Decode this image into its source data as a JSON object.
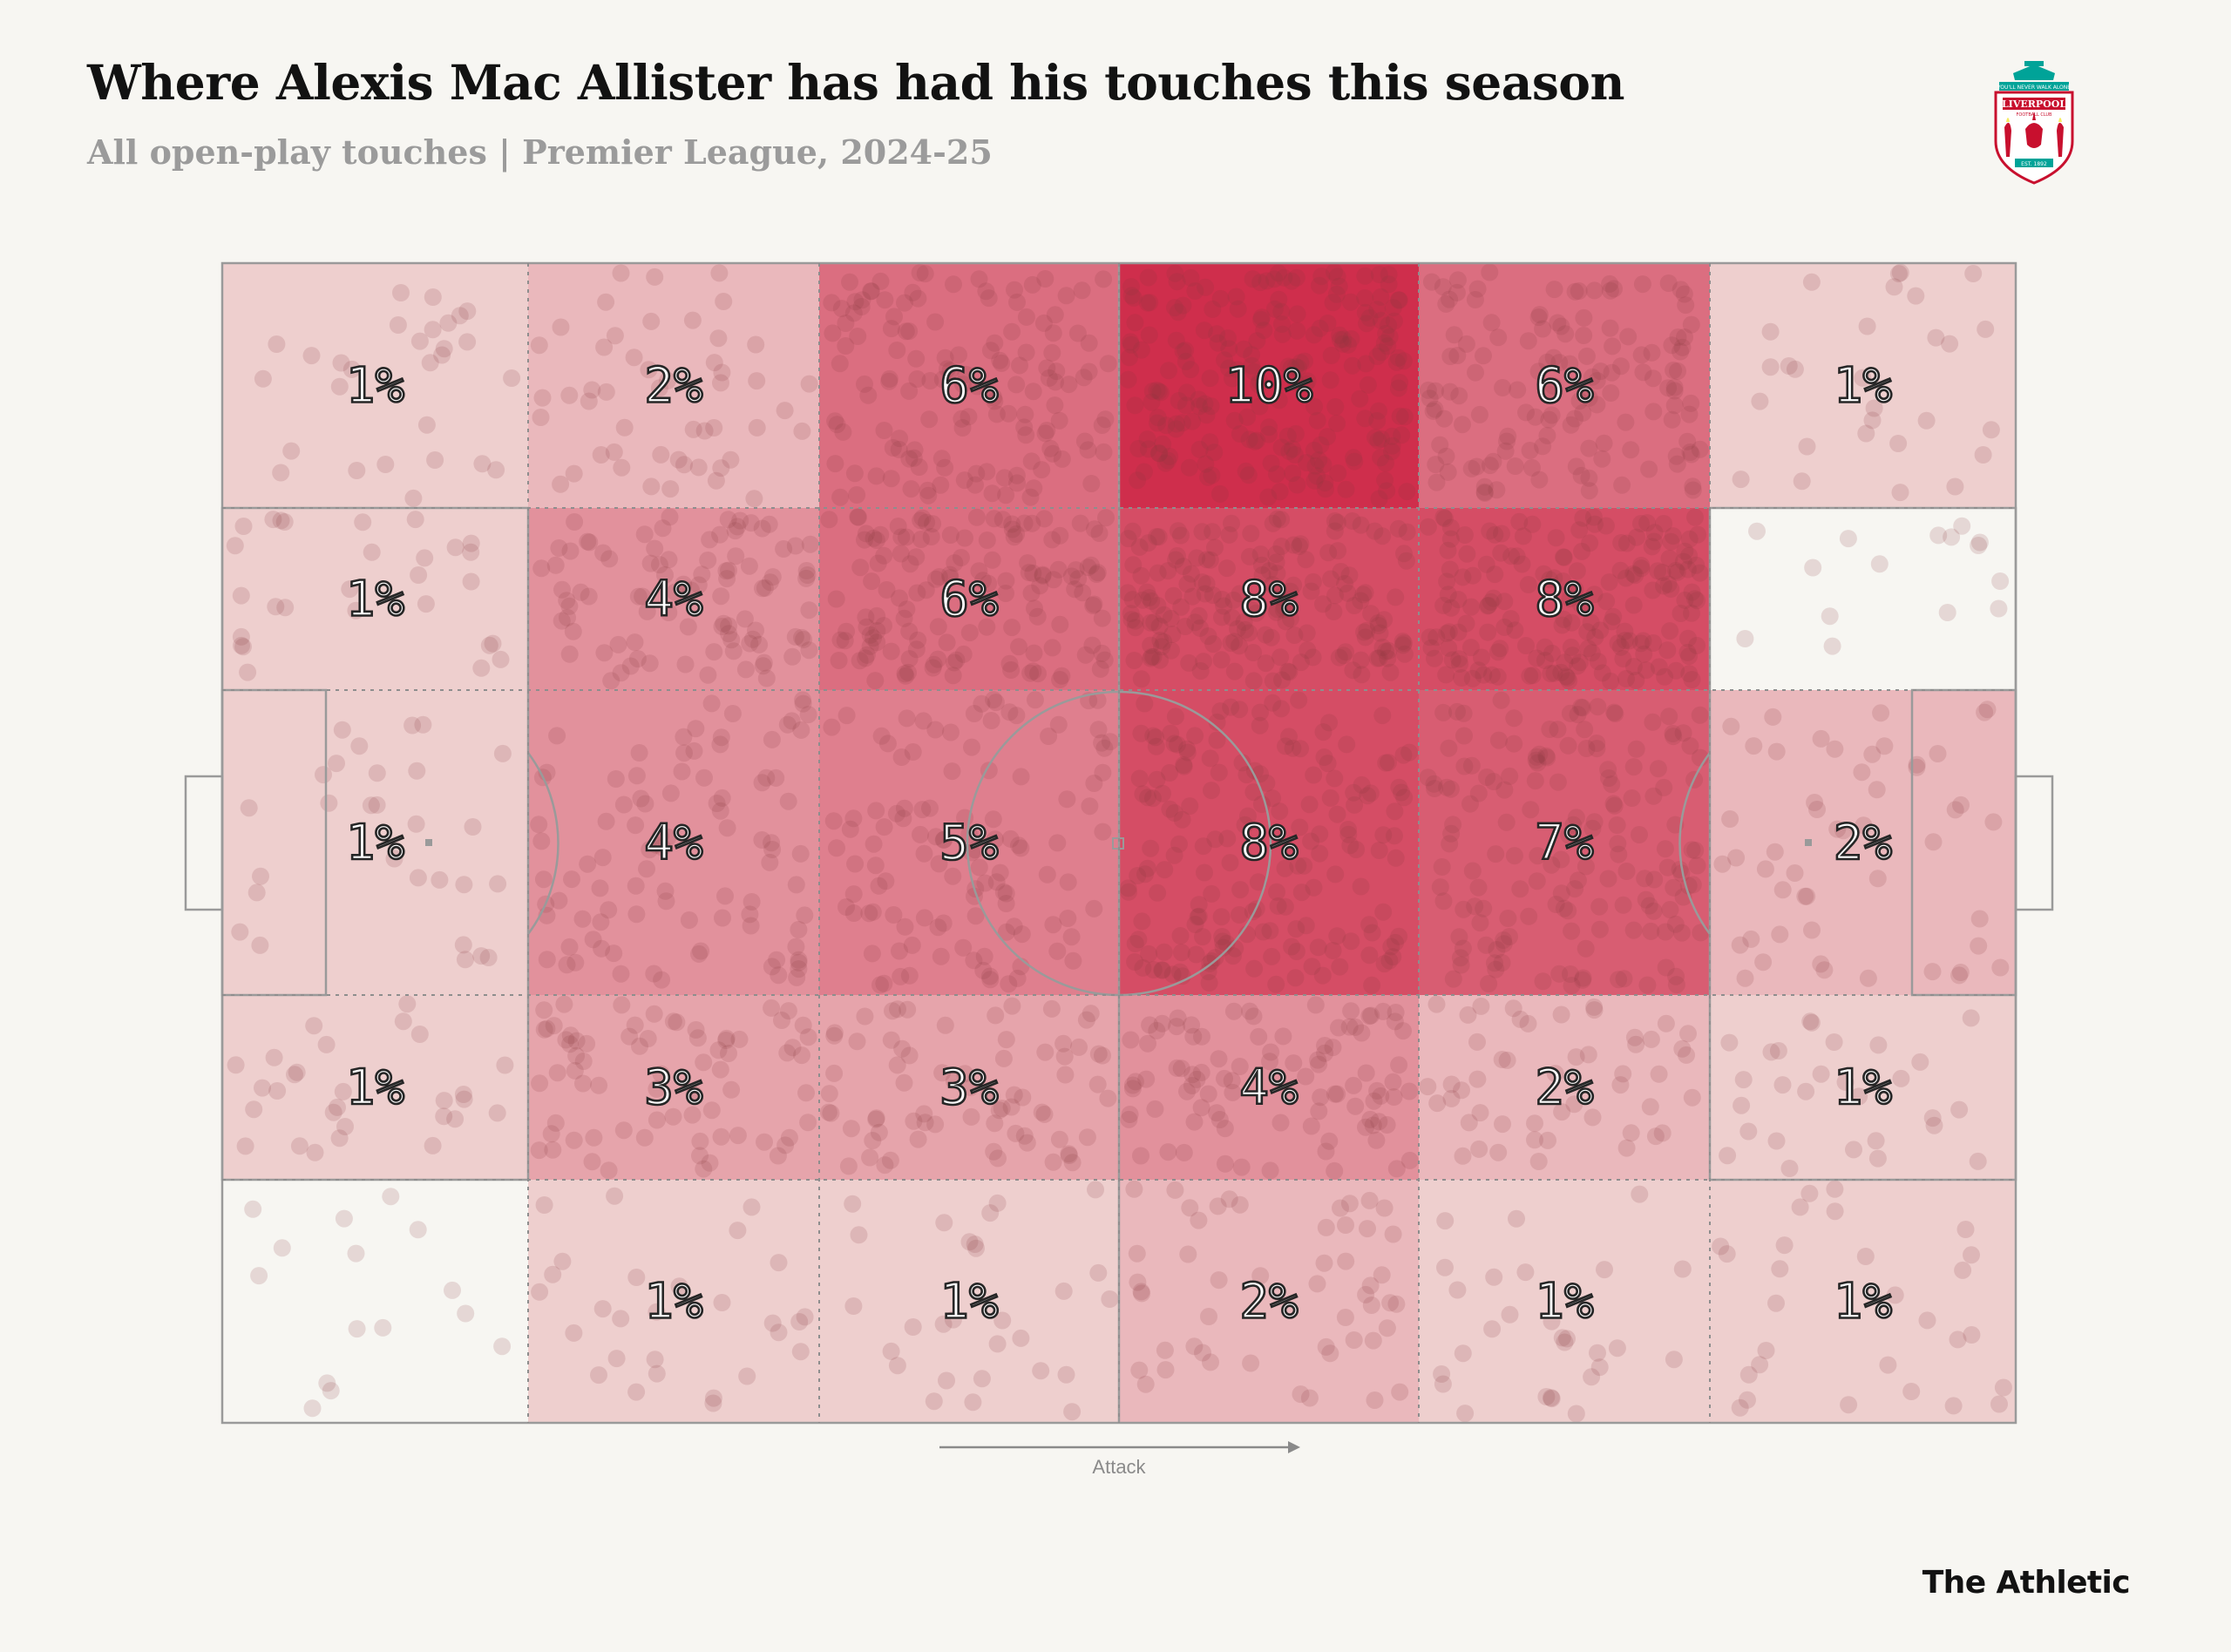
{
  "title": "Where Alexis Mac Allister has had his touches this season",
  "subtitle": "All open-play touches | Premier League, 2024-25",
  "brand": "The Athletic",
  "crest": {
    "icon": "liverpool-fc-crest-icon",
    "text_top": "YOU'LL NEVER WALK ALONE",
    "text_name": "LIVERPOOL",
    "text_club": "FOOTBALL CLUB",
    "text_est": "EST. 1892",
    "colors": {
      "red": "#c8102e",
      "green": "#00a398",
      "gold": "#f6eb61"
    }
  },
  "chart_data": {
    "type": "heatmap",
    "title": "Where Alexis Mac Allister has had his touches this season",
    "subtitle": "All open-play touches | Premier League, 2024-25",
    "direction_label": "Attack",
    "direction": "left-to-right",
    "grid_columns": 6,
    "grid_rows": 5,
    "percent_share": [
      [
        1,
        2,
        6,
        10,
        6,
        1
      ],
      [
        1,
        4,
        6,
        8,
        8,
        null
      ],
      [
        1,
        4,
        5,
        8,
        7,
        2
      ],
      [
        1,
        3,
        3,
        4,
        2,
        1
      ],
      [
        null,
        1,
        1,
        2,
        1,
        1
      ]
    ],
    "colors": {
      "background": "#f7f6f2",
      "low": "#f4ede6",
      "high": "#cf2e4c",
      "touch_dot": "#8b3a3f",
      "pitch_lines": "#9a9a9a"
    }
  }
}
